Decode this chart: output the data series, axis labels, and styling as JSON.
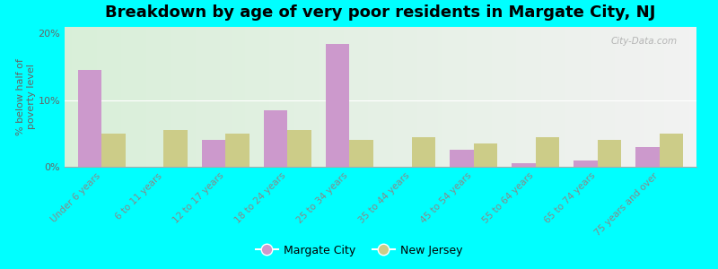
{
  "title": "Breakdown by age of very poor residents in Margate City, NJ",
  "ylabel": "% below half of\npoverty level",
  "categories": [
    "Under 6 years",
    "6 to 11 years",
    "12 to 17 years",
    "18 to 24 years",
    "25 to 34 years",
    "35 to 44 years",
    "45 to 54 years",
    "55 to 64 years",
    "65 to 74 years",
    "75 years and over"
  ],
  "margate_values": [
    14.5,
    0.0,
    4.0,
    8.5,
    18.5,
    0.0,
    2.5,
    0.5,
    1.0,
    3.0
  ],
  "nj_values": [
    5.0,
    5.5,
    5.0,
    5.5,
    4.0,
    4.5,
    3.5,
    4.5,
    4.0,
    5.0
  ],
  "margate_color": "#cc99cc",
  "nj_color": "#cccc88",
  "background_color": "#00ffff",
  "ylim": [
    0,
    21
  ],
  "yticks": [
    0,
    10,
    20
  ],
  "ytick_labels": [
    "0%",
    "10%",
    "20%"
  ],
  "bar_width": 0.38,
  "legend_margate": "Margate City",
  "legend_nj": "New Jersey",
  "watermark": "City-Data.com",
  "title_fontsize": 13,
  "axis_label_fontsize": 8,
  "tick_label_color": "#888888",
  "grid_color": "#ffffff",
  "plot_bg_left_color": "#c8e8b0",
  "plot_bg_right_color": "#f0f8e8"
}
